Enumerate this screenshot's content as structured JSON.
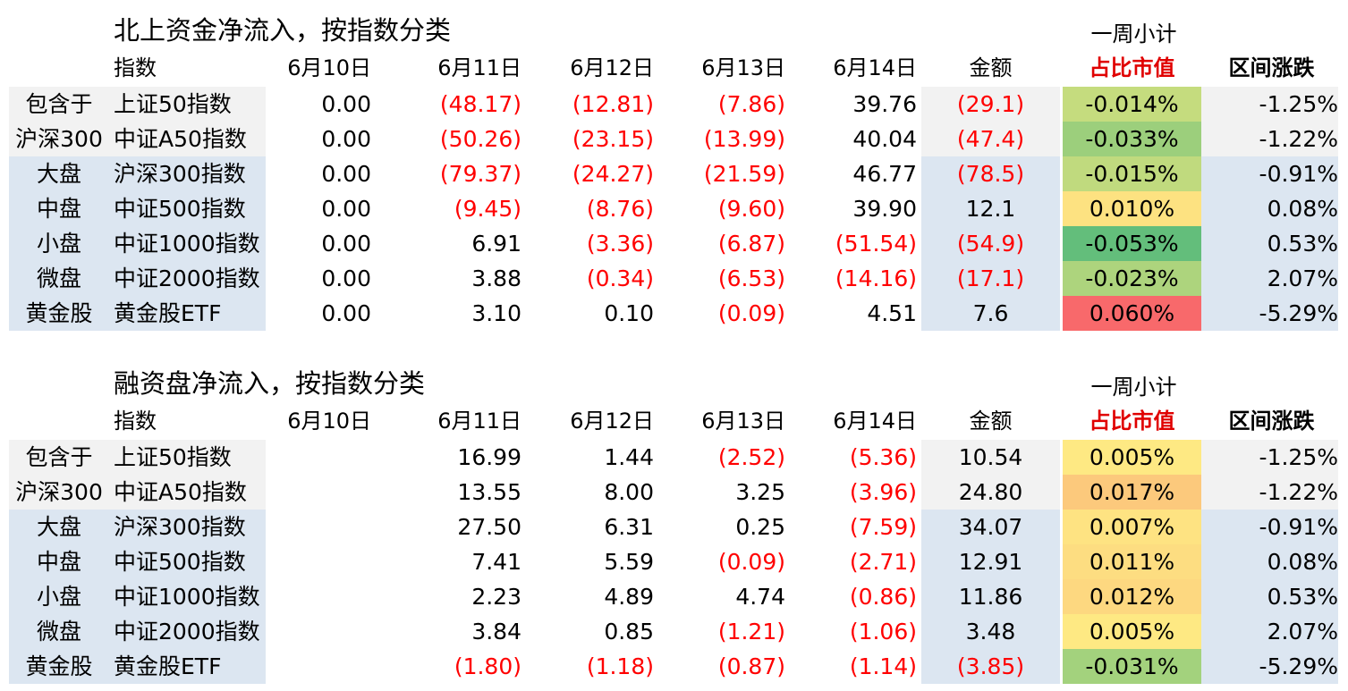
{
  "section1": {
    "title": "北上资金净流入，按指数分类",
    "subtotal_label": "一周小计",
    "headers": {
      "index": "指数",
      "dates": [
        "6月10日",
        "6月11日",
        "6月12日",
        "6月13日",
        "6月14日"
      ],
      "amount": "金额",
      "pct": "占比市值",
      "change": "区间涨跌"
    },
    "rows": [
      {
        "cat": "包含于",
        "idx": "上证50指数",
        "d": [
          "0.00",
          "(48.17)",
          "(12.81)",
          "(7.86)",
          "39.76"
        ],
        "amt": "(29.1)",
        "pct": "-0.014%",
        "chg": "-1.25%"
      },
      {
        "cat": "沪深300",
        "idx": "中证A50指数",
        "d": [
          "0.00",
          "(50.26)",
          "(23.15)",
          "(13.99)",
          "40.04"
        ],
        "amt": "(47.4)",
        "pct": "-0.033%",
        "chg": "-1.22%"
      },
      {
        "cat": "大盘",
        "idx": "沪深300指数",
        "d": [
          "0.00",
          "(79.37)",
          "(24.27)",
          "(21.59)",
          "46.77"
        ],
        "amt": "(78.5)",
        "pct": "-0.015%",
        "chg": "-0.91%"
      },
      {
        "cat": "中盘",
        "idx": "中证500指数",
        "d": [
          "0.00",
          "(9.45)",
          "(8.76)",
          "(9.60)",
          "39.90"
        ],
        "amt": "12.1",
        "pct": "0.010%",
        "chg": "0.08%"
      },
      {
        "cat": "小盘",
        "idx": "中证1000指数",
        "d": [
          "0.00",
          "6.91",
          "(3.36)",
          "(6.87)",
          "(51.54)"
        ],
        "amt": "(54.9)",
        "pct": "-0.053%",
        "chg": "0.53%"
      },
      {
        "cat": "微盘",
        "idx": "中证2000指数",
        "d": [
          "0.00",
          "3.88",
          "(0.34)",
          "(6.53)",
          "(14.16)"
        ],
        "amt": "(17.1)",
        "pct": "-0.023%",
        "chg": "2.07%"
      },
      {
        "cat": "黄金股",
        "idx": "黄金股ETF",
        "d": [
          "0.00",
          "3.10",
          "0.10",
          "(0.09)",
          "4.51"
        ],
        "amt": "7.6",
        "pct": "0.060%",
        "chg": "-5.29%"
      }
    ],
    "pct_colors": [
      "#c5dc7e",
      "#9ccf7c",
      "#c0da7e",
      "#fde281",
      "#63be7b",
      "#add47d",
      "#f8696b"
    ]
  },
  "section2": {
    "title": "融资盘净流入，按指数分类",
    "subtotal_label": "一周小计",
    "headers": {
      "index": "指数",
      "dates": [
        "6月10日",
        "6月11日",
        "6月12日",
        "6月13日",
        "6月14日"
      ],
      "amount": "金额",
      "pct": "占比市值",
      "change": "区间涨跌"
    },
    "rows": [
      {
        "cat": "包含于",
        "idx": "上证50指数",
        "d": [
          "",
          "16.99",
          "1.44",
          "(2.52)",
          "(5.36)"
        ],
        "amt": "10.54",
        "pct": "0.005%",
        "chg": "-1.25%"
      },
      {
        "cat": "沪深300",
        "idx": "中证A50指数",
        "d": [
          "",
          "13.55",
          "8.00",
          "3.25",
          "(3.96)"
        ],
        "amt": "24.80",
        "pct": "0.017%",
        "chg": "-1.22%"
      },
      {
        "cat": "大盘",
        "idx": "沪深300指数",
        "d": [
          "",
          "27.50",
          "6.31",
          "0.25",
          "(7.59)"
        ],
        "amt": "34.07",
        "pct": "0.007%",
        "chg": "-0.91%"
      },
      {
        "cat": "中盘",
        "idx": "中证500指数",
        "d": [
          "",
          "7.41",
          "5.59",
          "(0.09)",
          "(2.71)"
        ],
        "amt": "12.91",
        "pct": "0.011%",
        "chg": "0.08%"
      },
      {
        "cat": "小盘",
        "idx": "中证1000指数",
        "d": [
          "",
          "2.23",
          "4.89",
          "4.74",
          "(0.86)"
        ],
        "amt": "11.86",
        "pct": "0.012%",
        "chg": "0.53%"
      },
      {
        "cat": "微盘",
        "idx": "中证2000指数",
        "d": [
          "",
          "3.84",
          "0.85",
          "(1.21)",
          "(1.06)"
        ],
        "amt": "3.48",
        "pct": "0.005%",
        "chg": "2.07%"
      },
      {
        "cat": "黄金股",
        "idx": "黄金股ETF",
        "d": [
          "",
          "(1.80)",
          "(1.18)",
          "(0.87)",
          "(1.14)"
        ],
        "amt": "(3.85)",
        "pct": "-0.031%",
        "chg": "-5.29%"
      }
    ],
    "pct_colors": [
      "#fee983",
      "#fcc97c",
      "#fee382",
      "#fddd81",
      "#fdd880",
      "#fee983",
      "#a3d27d"
    ]
  }
}
